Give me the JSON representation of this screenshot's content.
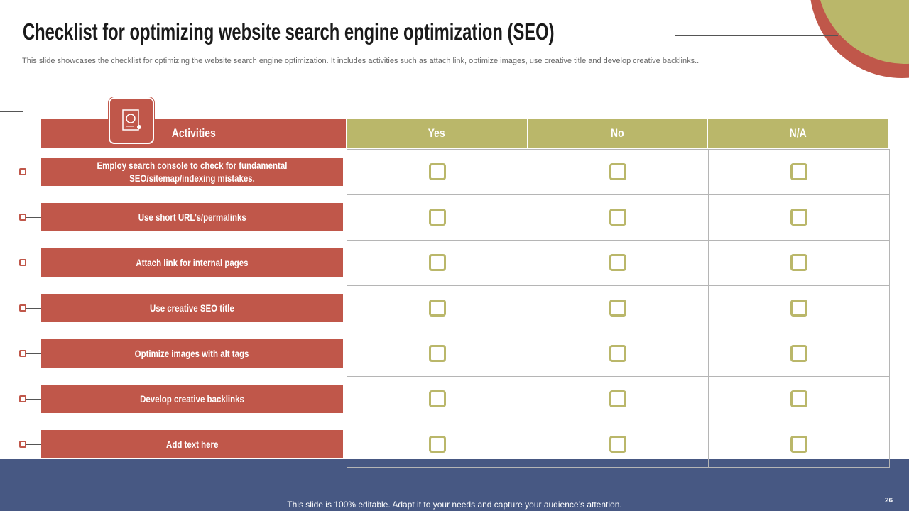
{
  "header": {
    "title": "Checklist for optimizing website search engine optimization (SEO)",
    "subtitle": "This slide showcases the checklist for optimizing the website search engine optimization. It includes activities such as attach link, optimize images, use creative title and develop creative backlinks.."
  },
  "table": {
    "columns": [
      "Activities",
      "Yes",
      "No",
      "N/A"
    ],
    "rows": [
      "Employ search console to check for fundamental SEO/sitemap/indexing mistakes.",
      "Use short URL’s/permalinks",
      "Attach link for internal pages",
      "Use creative SEO title",
      "Optimize images with alt tags",
      "Develop creative backlinks",
      "Add text here"
    ]
  },
  "footer": {
    "text": "This slide is 100% editable. Adapt it to your needs and capture your audience’s attention.",
    "page_number": "26"
  }
}
